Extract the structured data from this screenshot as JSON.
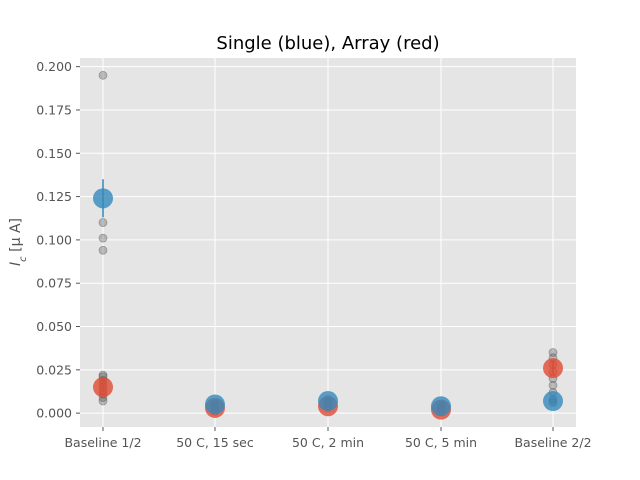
{
  "chart_data": {
    "type": "scatter",
    "title": "Single (blue), Array (red)",
    "xlabel": "",
    "ylabel_main": "I",
    "ylabel_sub": "c",
    "ylabel_units": " [μ A]",
    "categories": [
      "Baseline 1/2",
      "50 C, 15 sec",
      "50 C, 2 min",
      "50 C, 5 min",
      "Baseline 2/2"
    ],
    "ylim": [
      -0.008,
      0.205
    ],
    "yticks": [
      0.0,
      0.025,
      0.05,
      0.075,
      0.1,
      0.125,
      0.15,
      0.175,
      0.2
    ],
    "ytick_labels": [
      "0.000",
      "0.025",
      "0.050",
      "0.075",
      "0.100",
      "0.125",
      "0.150",
      "0.175",
      "0.200"
    ],
    "grid": true,
    "colors": {
      "background": "#e5e5e5",
      "grid": "#ffffff",
      "single": "#348abd",
      "array": "#e24a33",
      "raw": "#555555"
    },
    "raw_points": [
      {
        "category": 0,
        "values": [
          0.195,
          0.11,
          0.101,
          0.094,
          0.022,
          0.021,
          0.019,
          0.017,
          0.015,
          0.013,
          0.011,
          0.009,
          0.007
        ]
      },
      {
        "category": 1,
        "values": [
          0.006,
          0.005,
          0.004,
          0.003,
          0.002,
          0.001
        ]
      },
      {
        "category": 2,
        "values": [
          0.008,
          0.007,
          0.006,
          0.005,
          0.004,
          0.003
        ]
      },
      {
        "category": 3,
        "values": [
          0.005,
          0.004,
          0.003,
          0.002,
          0.001
        ]
      },
      {
        "category": 4,
        "values": [
          0.035,
          0.032,
          0.028,
          0.024,
          0.02,
          0.016,
          0.012,
          0.008,
          0.007,
          0.006
        ]
      }
    ],
    "series": [
      {
        "name": "Array",
        "color": "#e24a33",
        "values": [
          0.015,
          0.003,
          0.004,
          0.002,
          0.026
        ],
        "error": [
          0.002,
          0.0005,
          0.0005,
          0.0005,
          0.0035
        ]
      },
      {
        "name": "Single",
        "color": "#348abd",
        "values": [
          0.124,
          0.005,
          0.007,
          0.004,
          0.007
        ],
        "error": [
          0.011,
          0.0005,
          0.0005,
          0.0005,
          0.0005
        ]
      }
    ]
  }
}
